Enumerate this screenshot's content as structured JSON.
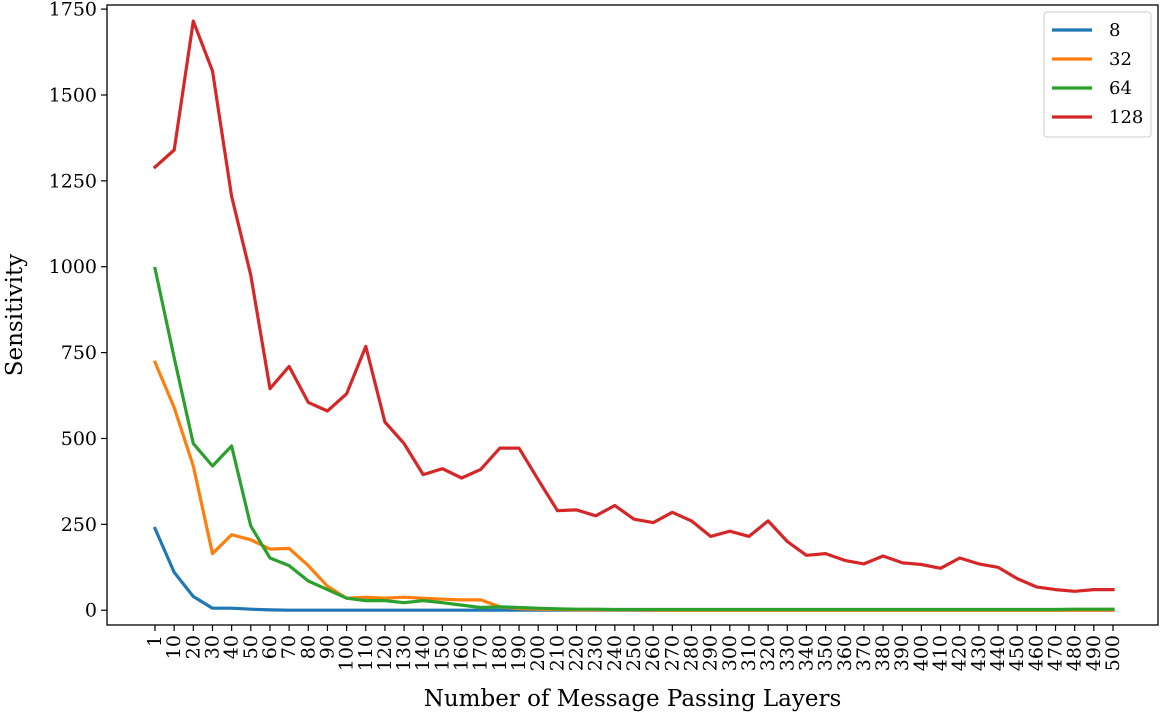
{
  "chart_data": {
    "type": "line",
    "title": "",
    "xlabel": "Number of Message Passing Layers",
    "ylabel": "Sensitivity",
    "categories": [
      "1",
      "10",
      "20",
      "30",
      "40",
      "50",
      "60",
      "70",
      "80",
      "90",
      "100",
      "110",
      "120",
      "130",
      "140",
      "150",
      "160",
      "170",
      "180",
      "190",
      "200",
      "210",
      "220",
      "230",
      "240",
      "250",
      "260",
      "270",
      "280",
      "290",
      "300",
      "310",
      "320",
      "330",
      "340",
      "350",
      "360",
      "370",
      "380",
      "390",
      "400",
      "410",
      "420",
      "430",
      "440",
      "450",
      "460",
      "470",
      "480",
      "490",
      "500"
    ],
    "ylim": [
      -43,
      1762
    ],
    "yticks": [
      0,
      250,
      500,
      750,
      1000,
      1250,
      1500,
      1750
    ],
    "grid": false,
    "legend_position": "top-right",
    "series": [
      {
        "name": "8",
        "color": "#1f77b4",
        "values": [
          238,
          110,
          40,
          6,
          6,
          3,
          1,
          0,
          0,
          0,
          0,
          0,
          0,
          0,
          0,
          0,
          0,
          0,
          0,
          0,
          0,
          0,
          0,
          0,
          0,
          0,
          0,
          0,
          0,
          0,
          0,
          0,
          0,
          0,
          0,
          0,
          0,
          0,
          0,
          0,
          0,
          0,
          0,
          0,
          0,
          0,
          0,
          0,
          0,
          0,
          0
        ]
      },
      {
        "name": "32",
        "color": "#ff7f0e",
        "values": [
          722,
          590,
          420,
          165,
          220,
          205,
          178,
          180,
          130,
          70,
          35,
          38,
          35,
          38,
          35,
          32,
          30,
          30,
          10,
          5,
          3,
          2,
          1,
          1,
          1,
          1,
          0,
          0,
          0,
          0,
          0,
          0,
          0,
          0,
          0,
          0,
          0,
          0,
          0,
          0,
          0,
          0,
          0,
          0,
          0,
          0,
          0,
          0,
          0,
          0,
          0
        ]
      },
      {
        "name": "64",
        "color": "#2ca02c",
        "values": [
          995,
          735,
          485,
          420,
          478,
          245,
          152,
          130,
          85,
          60,
          35,
          28,
          28,
          22,
          28,
          22,
          15,
          8,
          10,
          8,
          6,
          4,
          3,
          3,
          2,
          2,
          2,
          2,
          2,
          2,
          2,
          2,
          2,
          2,
          2,
          2,
          2,
          2,
          2,
          2,
          2,
          2,
          2,
          2,
          2,
          2,
          2,
          2,
          3,
          3,
          3
        ]
      },
      {
        "name": "128",
        "color": "#d62728",
        "values": [
          1290,
          1340,
          1715,
          1570,
          1205,
          975,
          645,
          710,
          605,
          580,
          630,
          768,
          548,
          485,
          395,
          412,
          385,
          410,
          472,
          472,
          380,
          290,
          292,
          275,
          305,
          265,
          255,
          285,
          260,
          215,
          230,
          215,
          260,
          200,
          160,
          165,
          145,
          135,
          158,
          138,
          133,
          122,
          152,
          135,
          125,
          92,
          68,
          60,
          55,
          60,
          60
        ]
      }
    ]
  }
}
